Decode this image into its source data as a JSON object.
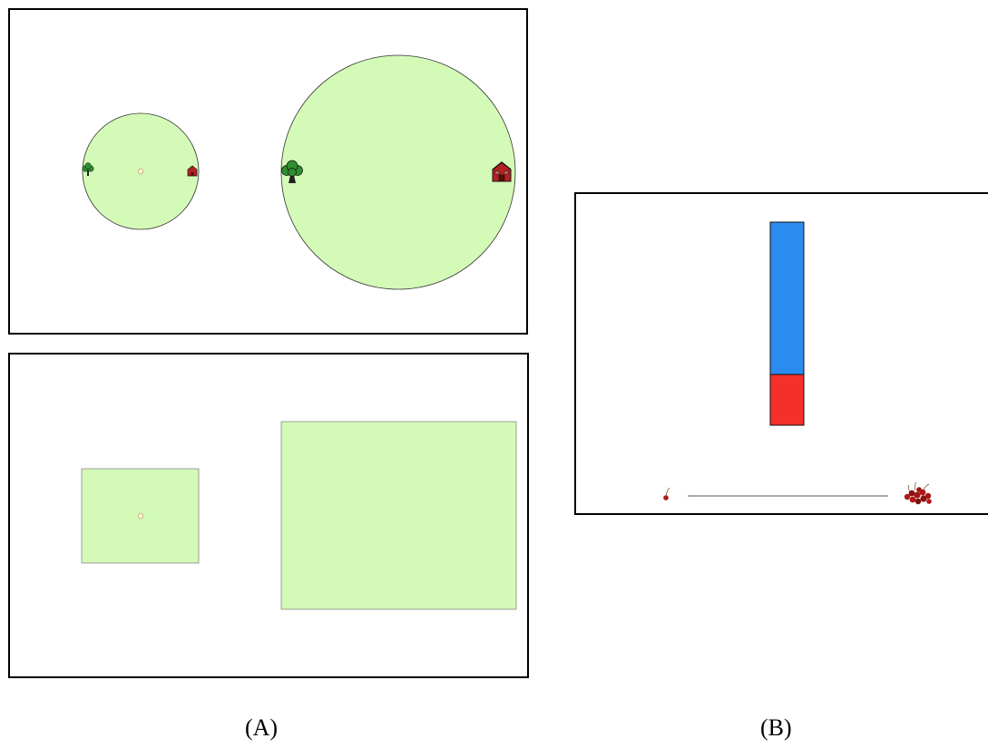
{
  "captions": {
    "a": "(A)",
    "b": "(B)"
  },
  "colors": {
    "field": "#d4fab7",
    "field_outline": "#333333",
    "tree_leaves": "#2d8f2d",
    "tree_trunk": "#222222",
    "house": "#b32222",
    "seed": "#fff6dc",
    "bar_upper": "#2b8cf0",
    "bar_lower": "#f5302a",
    "scale_line": "#aaaaaa",
    "cherry": "#b01818"
  },
  "icons": {
    "left_of_field": "tree-icon",
    "right_of_field": "house-icon",
    "center_of_small_field": "seed-dot-icon",
    "scale_left_end": "single-cherry-icon",
    "scale_right_end": "cherry-pile-icon"
  },
  "bar": {
    "lower_fraction": 0.25
  }
}
